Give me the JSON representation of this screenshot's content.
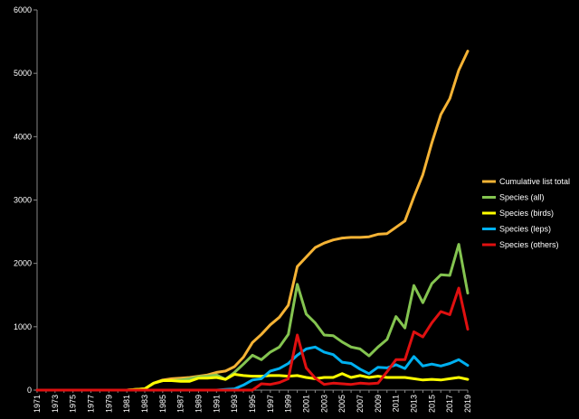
{
  "chart_data": {
    "type": "line",
    "title": "",
    "xlabel": "",
    "ylabel": "",
    "ylim": [
      0,
      6000
    ],
    "y_ticks": [
      0,
      1000,
      2000,
      3000,
      4000,
      5000,
      6000
    ],
    "x_tick_labels": [
      "1971",
      "1973",
      "1975",
      "1977",
      "1979",
      "1981",
      "1983",
      "1985",
      "1987",
      "1989",
      "1991",
      "1993",
      "1995",
      "1997",
      "1999",
      "2001",
      "2003",
      "2005",
      "2007",
      "2009",
      "2011",
      "2013",
      "2015",
      "2017",
      "2019"
    ],
    "grid": false,
    "legend_position": "right",
    "background": "#000000",
    "x": [
      1971,
      1972,
      1973,
      1974,
      1975,
      1976,
      1977,
      1978,
      1979,
      1980,
      1981,
      1982,
      1983,
      1984,
      1985,
      1986,
      1987,
      1988,
      1989,
      1990,
      1991,
      1992,
      1993,
      1994,
      1995,
      1996,
      1997,
      1998,
      1999,
      2000,
      2001,
      2002,
      2003,
      2004,
      2005,
      2006,
      2007,
      2008,
      2009,
      2010,
      2011,
      2012,
      2013,
      2014,
      2015,
      2016,
      2017,
      2018,
      2019
    ],
    "series": [
      {
        "name": "Cumulative list total",
        "color": "#f5b335",
        "values": [
          0,
          0,
          0,
          0,
          0,
          0,
          0,
          0,
          0,
          0,
          0,
          10,
          20,
          110,
          160,
          180,
          190,
          200,
          220,
          240,
          280,
          300,
          370,
          520,
          750,
          880,
          1030,
          1150,
          1340,
          1950,
          2100,
          2250,
          2320,
          2370,
          2400,
          2410,
          2410,
          2420,
          2460,
          2470,
          2570,
          2670,
          3050,
          3400,
          3900,
          4350,
          4600,
          5050,
          5350
        ]
      },
      {
        "name": "Species (all)",
        "color": "#84c450",
        "values": [
          0,
          0,
          0,
          0,
          0,
          0,
          0,
          0,
          0,
          0,
          0,
          10,
          20,
          110,
          150,
          150,
          160,
          180,
          210,
          220,
          240,
          170,
          280,
          410,
          550,
          480,
          600,
          680,
          880,
          1670,
          1200,
          1060,
          870,
          860,
          760,
          680,
          650,
          540,
          680,
          800,
          1160,
          980,
          1650,
          1380,
          1680,
          1820,
          1810,
          2300,
          1530
        ]
      },
      {
        "name": "Species (birds)",
        "color": "#ffff00",
        "values": [
          0,
          0,
          0,
          0,
          0,
          0,
          0,
          0,
          0,
          0,
          0,
          10,
          20,
          110,
          150,
          150,
          140,
          140,
          190,
          190,
          200,
          170,
          250,
          230,
          220,
          220,
          230,
          230,
          220,
          230,
          200,
          180,
          200,
          200,
          260,
          200,
          230,
          200,
          220,
          200,
          200,
          200,
          180,
          160,
          170,
          160,
          180,
          200,
          170
        ]
      },
      {
        "name": "Species (leps)",
        "color": "#00b0f0",
        "values": [
          0,
          0,
          0,
          0,
          0,
          0,
          0,
          0,
          0,
          0,
          0,
          0,
          0,
          0,
          0,
          0,
          0,
          0,
          0,
          0,
          0,
          10,
          20,
          80,
          160,
          180,
          300,
          340,
          420,
          550,
          650,
          680,
          600,
          560,
          440,
          420,
          330,
          260,
          360,
          350,
          400,
          340,
          530,
          380,
          410,
          380,
          420,
          480,
          390
        ]
      },
      {
        "name": "Species (others)",
        "color": "#e01010",
        "values": [
          0,
          0,
          0,
          0,
          0,
          0,
          0,
          0,
          0,
          0,
          0,
          0,
          0,
          0,
          0,
          0,
          0,
          0,
          0,
          0,
          0,
          0,
          0,
          0,
          0,
          100,
          90,
          120,
          180,
          870,
          350,
          190,
          90,
          110,
          100,
          90,
          110,
          100,
          110,
          290,
          480,
          480,
          920,
          840,
          1060,
          1240,
          1190,
          1610,
          960
        ]
      }
    ]
  }
}
